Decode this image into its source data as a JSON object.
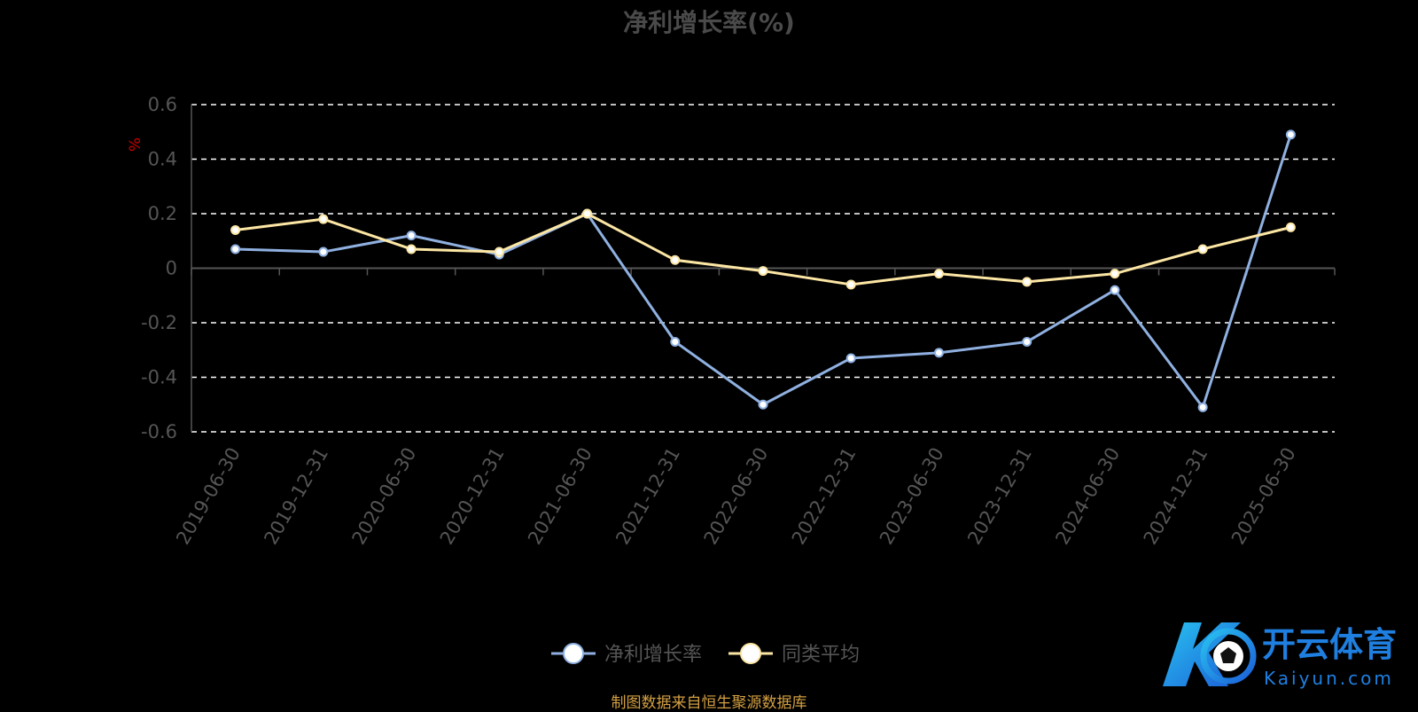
{
  "chart_data": {
    "type": "line",
    "title": "净利增长率(%)",
    "ylabel": "%",
    "ylim": [
      -0.6,
      0.6
    ],
    "yticks": [
      0.6,
      0.4,
      0.2,
      0,
      -0.2,
      -0.4,
      -0.6
    ],
    "grid": true,
    "legend_position": "bottom-center",
    "categories": [
      "2019-06-30",
      "2019-12-31",
      "2020-06-30",
      "2020-12-31",
      "2021-06-30",
      "2021-12-31",
      "2022-06-30",
      "2022-12-31",
      "2023-06-30",
      "2023-12-31",
      "2024-06-30",
      "2024-12-31",
      "2025-06-30"
    ],
    "series": [
      {
        "name": "净利增长率",
        "color": "#8fb0e0",
        "values": [
          0.07,
          0.06,
          0.12,
          0.05,
          0.2,
          -0.27,
          -0.5,
          -0.33,
          -0.31,
          -0.27,
          -0.08,
          -0.51,
          0.49
        ]
      },
      {
        "name": "同类平均",
        "color": "#fce6a4",
        "values": [
          0.14,
          0.18,
          0.07,
          0.06,
          0.2,
          0.03,
          -0.01,
          -0.06,
          -0.02,
          -0.05,
          -0.02,
          0.07,
          0.15
        ]
      }
    ]
  },
  "source_note": "制图数据来自恒生聚源数据库",
  "watermark": {
    "cn": "开云体育",
    "en": "Kaiyun.com"
  },
  "colors": {
    "axis": "#555555",
    "grid": "#ffffff",
    "ylabel": "#cc0000",
    "source": "#d4a042",
    "brand": "#1f7fe0"
  }
}
